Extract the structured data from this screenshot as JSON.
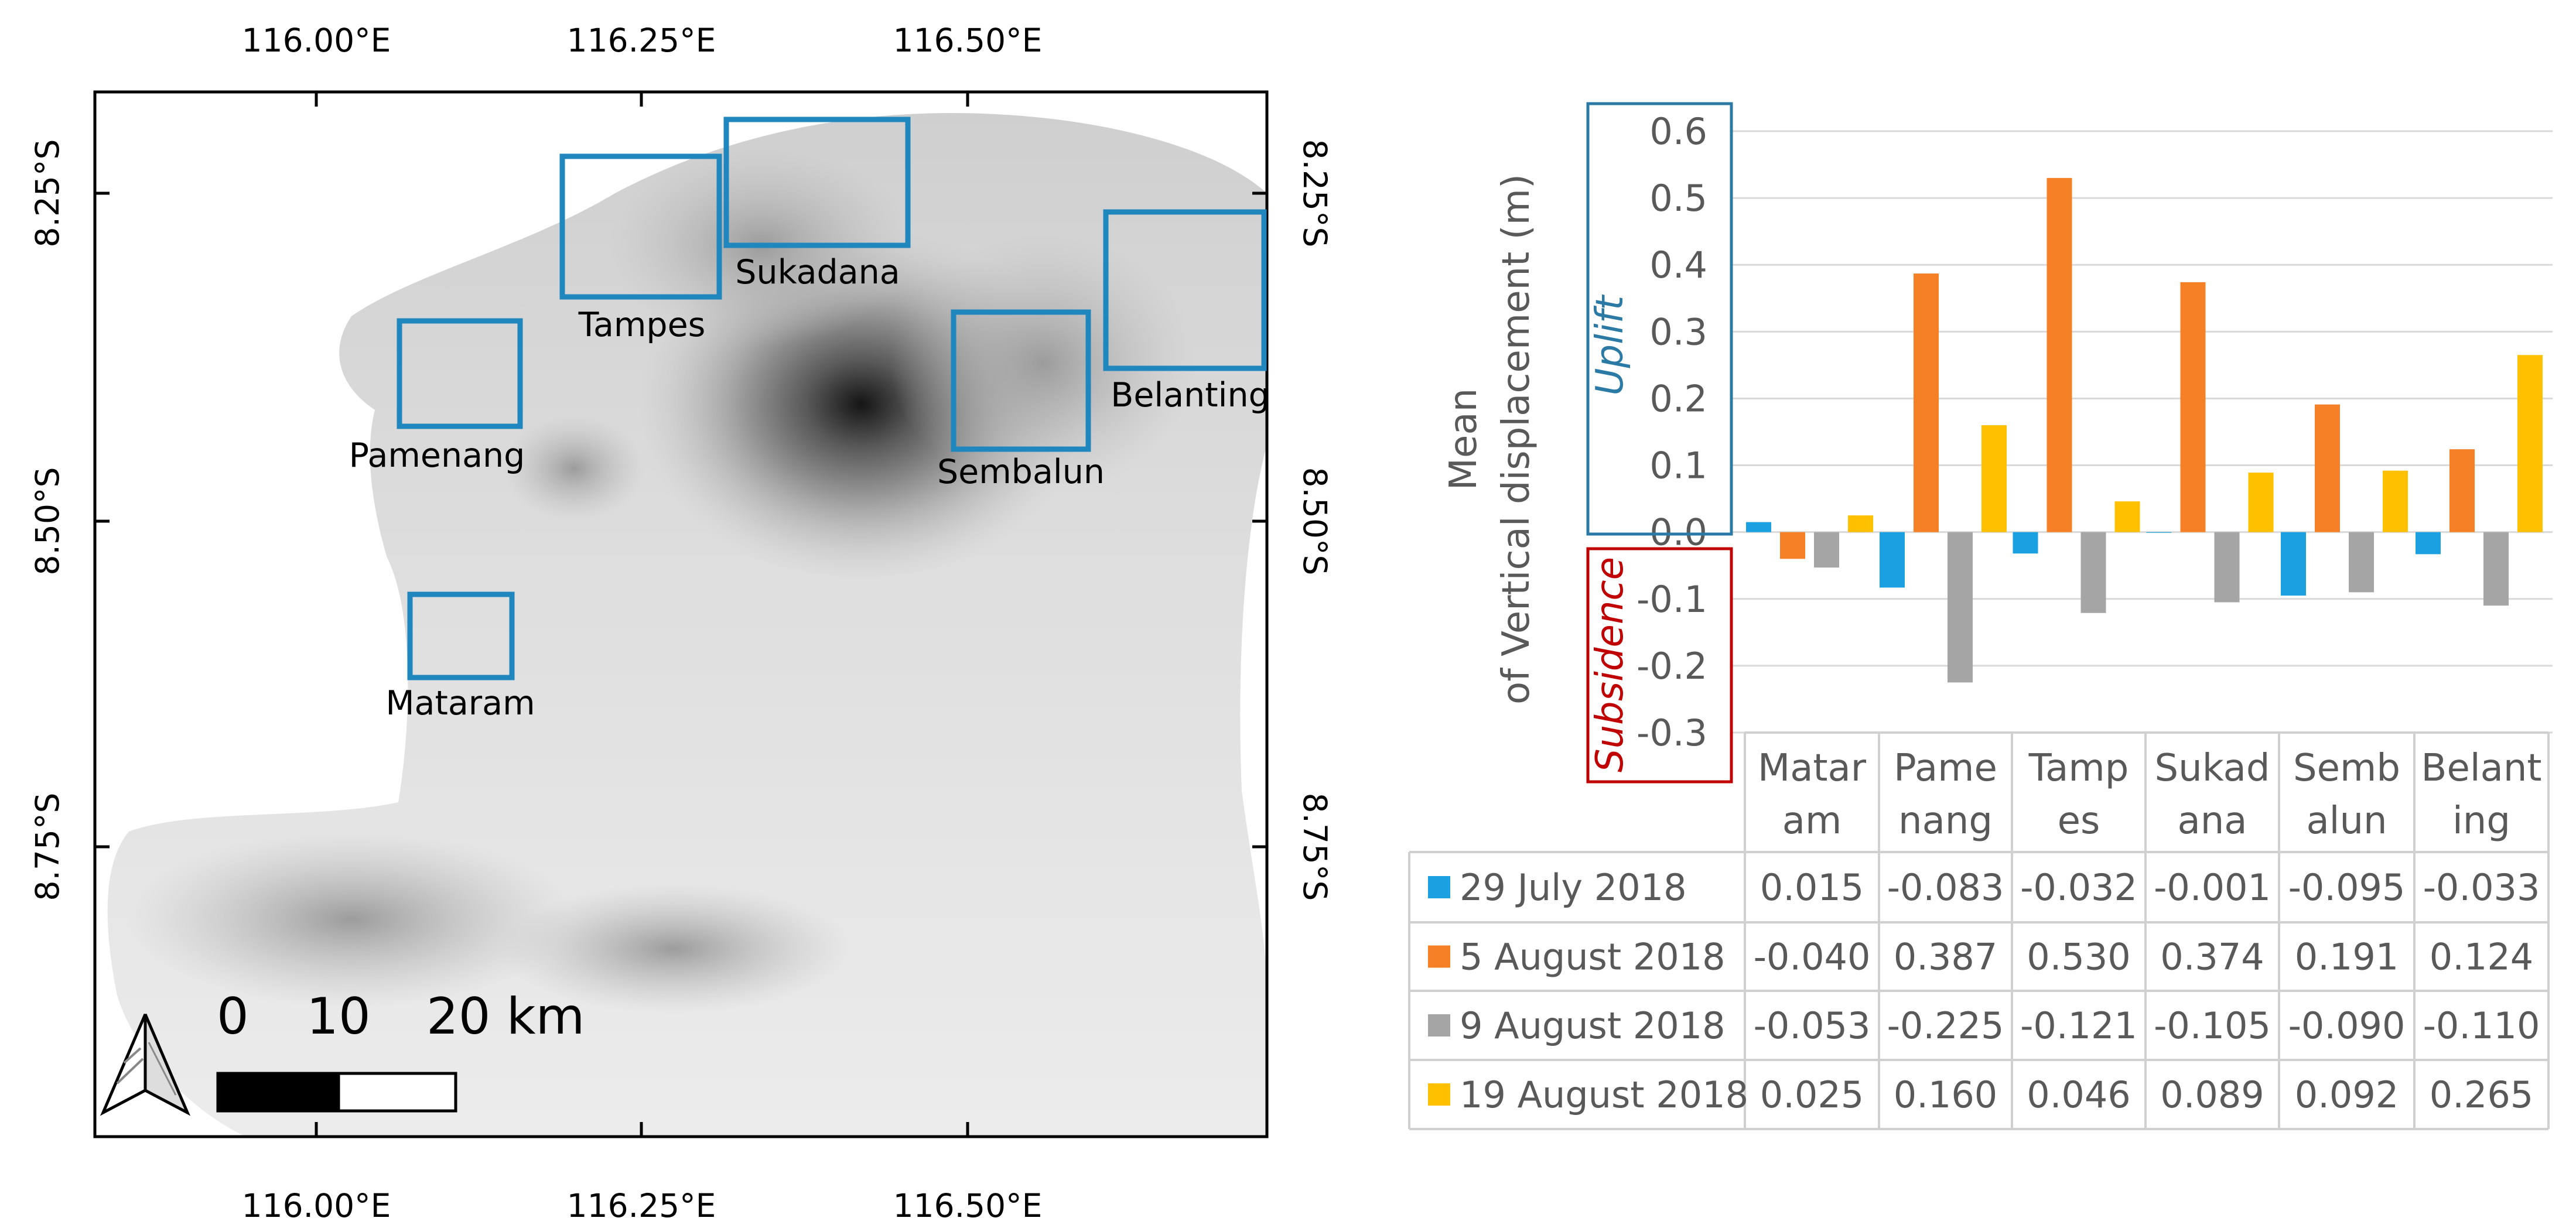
{
  "map": {
    "top_lon_ticks": [
      "116.00°E",
      "116.25°E",
      "116.50°E"
    ],
    "bottom_lon_ticks": [
      "116.00°E",
      "116.25°E",
      "116.50°E"
    ],
    "left_lat_ticks": [
      "8.25°S",
      "8.50°S",
      "8.75°S"
    ],
    "right_lat_ticks": [
      "8.25°S",
      "8.50°S",
      "8.75°S"
    ],
    "regions": [
      "Tampes",
      "Sukadana",
      "Pamenang",
      "Sembalun",
      "Belanting",
      "Mataram"
    ],
    "scale_labels": [
      "0",
      "10",
      "20 km"
    ],
    "colors": {
      "box": "#1f86be",
      "frame": "#000000"
    }
  },
  "chart_data": {
    "type": "bar",
    "title": "",
    "xlabel": "",
    "ylabel_line1": "Mean",
    "ylabel_line2": "of Vertical displacement (m)",
    "uplift_label": "Uplift",
    "subsidence_label": "Subsidence",
    "ylim": [
      -0.3,
      0.6
    ],
    "yticks": [
      "0.6",
      "0.5",
      "0.4",
      "0.3",
      "0.2",
      "0.1",
      "0.0",
      "-0.1",
      "-0.2",
      "-0.3"
    ],
    "categories": [
      "Mataram",
      "Pamenang",
      "Tampes",
      "Sukadana",
      "Sembalun",
      "Belanting"
    ],
    "category_lines": [
      [
        "Matar",
        "am"
      ],
      [
        "Pame",
        "nang"
      ],
      [
        "Tamp",
        "es"
      ],
      [
        "Sukad",
        "ana"
      ],
      [
        "Semb",
        "alun"
      ],
      [
        "Belant",
        "ing"
      ]
    ],
    "series": [
      {
        "name": "29 July 2018",
        "color": "#1ba1e2",
        "values": [
          0.015,
          -0.083,
          -0.032,
          -0.001,
          -0.095,
          -0.033
        ],
        "labels": [
          "0.015",
          "-0.083",
          "-0.032",
          "-0.001",
          "-0.095",
          "-0.033"
        ]
      },
      {
        "name": "5 August 2018",
        "color": "#f58026",
        "values": [
          -0.04,
          0.387,
          0.53,
          0.374,
          0.191,
          0.124
        ],
        "labels": [
          "-0.040",
          "0.387",
          "0.530",
          "0.374",
          "0.191",
          "0.124"
        ]
      },
      {
        "name": "9 August 2018",
        "color": "#a5a5a5",
        "values": [
          -0.053,
          -0.225,
          -0.121,
          -0.105,
          -0.09,
          -0.11
        ],
        "labels": [
          "-0.053",
          "-0.225",
          "-0.121",
          "-0.105",
          "-0.090",
          "-0.110"
        ]
      },
      {
        "name": "19 August 2018",
        "color": "#ffc000",
        "values": [
          0.025,
          0.16,
          0.046,
          0.089,
          0.092,
          0.265
        ],
        "labels": [
          "0.025",
          "0.160",
          "0.046",
          "0.089",
          "0.092",
          "0.265"
        ]
      }
    ],
    "colors": {
      "uplift": "#2a7aa5",
      "subsidence": "#c00000",
      "text": "#595959",
      "grid": "#d9d9d9"
    }
  }
}
